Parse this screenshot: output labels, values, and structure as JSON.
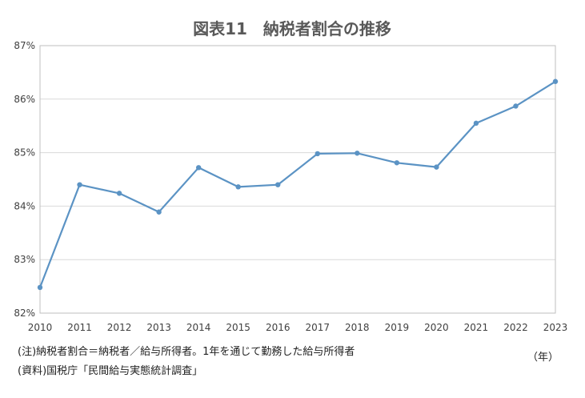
{
  "chart_data": {
    "type": "line",
    "title": "図表11　納税者割合の推移",
    "x": [
      "2010",
      "2011",
      "2012",
      "2013",
      "2014",
      "2015",
      "2016",
      "2017",
      "2018",
      "2019",
      "2020",
      "2021",
      "2022",
      "2023"
    ],
    "series": [
      {
        "values": [
          82.48,
          84.4,
          84.24,
          83.89,
          84.72,
          84.36,
          84.4,
          84.98,
          84.99,
          84.81,
          84.73,
          85.55,
          85.87,
          86.33
        ]
      }
    ],
    "yticks": [
      "82%",
      "83%",
      "84%",
      "85%",
      "86%",
      "87%"
    ],
    "ylim": [
      82,
      87
    ],
    "xunit": "（年）",
    "grid": true,
    "line_color": "#5B93C4"
  },
  "notes": {
    "note1": "(注)納税者割合＝納税者／給与所得者。1年を通じて勤務した給与所得者",
    "note2": "(資料)国税庁「民間給与実態統計調査」"
  }
}
